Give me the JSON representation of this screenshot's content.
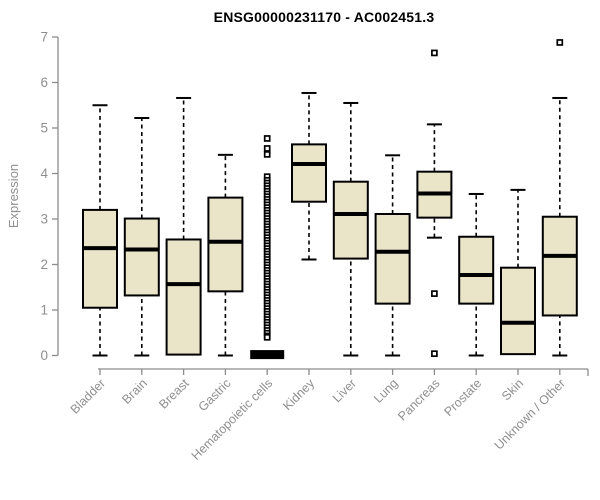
{
  "chart_data": {
    "type": "boxplot",
    "title": "ENSG00000231170 - AC002451.3",
    "xlabel": "",
    "ylabel": "Expression",
    "ylim": [
      0,
      7
    ],
    "yticks": [
      0,
      1,
      2,
      3,
      4,
      5,
      6,
      7
    ],
    "grid": false,
    "legend": null,
    "categories": [
      "Bladder",
      "Brain",
      "Breast",
      "Gastric",
      "Hematopoietic cells",
      "Kidney",
      "Liver",
      "Lung",
      "Pancreas",
      "Prostate",
      "Skin",
      "Unknown / Other"
    ],
    "series": [
      {
        "name": "Bladder",
        "low": 0,
        "q1": 1.05,
        "median": 2.36,
        "q3": 3.2,
        "high": 5.5,
        "outliers": []
      },
      {
        "name": "Brain",
        "low": 0,
        "q1": 1.32,
        "median": 2.33,
        "q3": 3.01,
        "high": 5.22,
        "outliers": []
      },
      {
        "name": "Breast",
        "low": 0,
        "q1": 0.02,
        "median": 1.57,
        "q3": 2.55,
        "high": 5.66,
        "outliers": []
      },
      {
        "name": "Gastric",
        "low": 0,
        "q1": 1.41,
        "median": 2.5,
        "q3": 3.47,
        "high": 4.41,
        "outliers": []
      },
      {
        "name": "Hematopoietic cells",
        "low": 0,
        "q1": 0,
        "median": 0.02,
        "q3": 0.04,
        "high": 0.04,
        "outliers": [
          4.77,
          4.55,
          4.42,
          3.93,
          3.85,
          3.79,
          3.73,
          3.67,
          3.61,
          3.55,
          3.49,
          3.43,
          3.37,
          3.31,
          3.25,
          3.19,
          3.13,
          3.07,
          3.01,
          2.95,
          2.89,
          2.83,
          2.77,
          2.71,
          2.65,
          2.59,
          2.53,
          2.47,
          2.41,
          2.35,
          2.29,
          2.23,
          2.17,
          2.11,
          2.05,
          1.99,
          1.93,
          1.87,
          1.81,
          1.75,
          1.69,
          1.63,
          1.57,
          1.51,
          1.45,
          1.39,
          1.33,
          1.27,
          1.21,
          1.15,
          1.09,
          1.03,
          0.97,
          0.91,
          0.85,
          0.79,
          0.73,
          0.67,
          0.61,
          0.55,
          0.49,
          0.43,
          0.4
        ]
      },
      {
        "name": "Kidney",
        "low": 2.11,
        "q1": 3.38,
        "median": 4.21,
        "q3": 4.64,
        "high": 5.77,
        "outliers": []
      },
      {
        "name": "Liver",
        "low": 0,
        "q1": 2.13,
        "median": 3.11,
        "q3": 3.82,
        "high": 5.55,
        "outliers": []
      },
      {
        "name": "Lung",
        "low": 0,
        "q1": 1.14,
        "median": 2.28,
        "q3": 3.11,
        "high": 4.4,
        "outliers": []
      },
      {
        "name": "Pancreas",
        "low": 2.59,
        "q1": 3.03,
        "median": 3.56,
        "q3": 4.04,
        "high": 5.08,
        "outliers": [
          6.65,
          1.36,
          0.04
        ]
      },
      {
        "name": "Prostate",
        "low": 0,
        "q1": 1.14,
        "median": 1.77,
        "q3": 2.61,
        "high": 3.55,
        "outliers": []
      },
      {
        "name": "Skin",
        "low": 0,
        "q1": 0.03,
        "median": 0.72,
        "q3": 1.93,
        "high": 3.64,
        "outliers": []
      },
      {
        "name": "Unknown / Other",
        "low": 0,
        "q1": 0.88,
        "median": 2.19,
        "q3": 3.05,
        "high": 5.66,
        "outliers": [
          6.88
        ]
      }
    ],
    "colors": {
      "background": "#FFFFFF",
      "box_fill": "#EAE4C9",
      "box_border": "#000000",
      "median": "#000000",
      "whisker": "#000000",
      "outlier": "#000000",
      "axis": "#8C8C8C",
      "tick_label": "#8F8F8F",
      "title": "#000000"
    }
  }
}
